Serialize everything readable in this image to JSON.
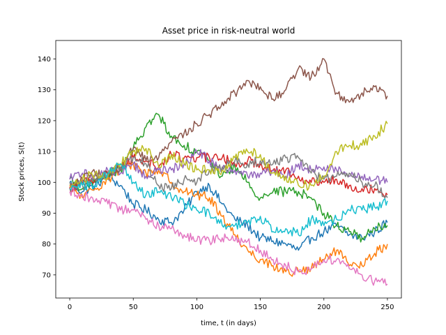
{
  "chart_data": {
    "type": "line",
    "title": "Asset price in risk-neutral world",
    "xlabel": "time, t (in days)",
    "ylabel": "Stock prices, S(t)",
    "xlim": [
      -11,
      261
    ],
    "ylim": [
      62.5,
      146
    ],
    "xticks": [
      0,
      50,
      100,
      150,
      200,
      250
    ],
    "yticks": [
      70,
      80,
      90,
      100,
      110,
      120,
      130,
      140
    ],
    "grid": false,
    "legend": "none",
    "x": [
      0,
      10,
      20,
      30,
      40,
      50,
      60,
      70,
      80,
      90,
      100,
      110,
      120,
      130,
      140,
      150,
      160,
      170,
      180,
      190,
      200,
      210,
      220,
      230,
      240,
      250
    ],
    "series": [
      {
        "color": "#1f77b4",
        "values": [
          100,
          97,
          99,
          102,
          99,
          93,
          91,
          88,
          87,
          91,
          97,
          99,
          93,
          88,
          86,
          82,
          81,
          80,
          78,
          82,
          84,
          86,
          83,
          82,
          84,
          87
        ]
      },
      {
        "color": "#ff7f0e",
        "values": [
          99,
          95,
          98,
          101,
          104,
          106,
          103,
          104,
          100,
          97,
          96,
          95,
          89,
          83,
          78,
          75,
          73,
          71,
          71,
          72,
          75,
          78,
          73,
          73,
          77,
          80
        ]
      },
      {
        "color": "#2ca02c",
        "values": [
          101,
          98,
          100,
          103,
          104,
          111,
          118,
          122,
          115,
          112,
          110,
          107,
          102,
          105,
          100,
          95,
          97,
          97,
          97,
          95,
          90,
          86,
          84,
          82,
          85,
          86
        ]
      },
      {
        "color": "#d62728",
        "values": [
          98,
          100,
          101,
          103,
          105,
          108,
          107,
          105,
          109,
          108,
          108,
          108,
          108,
          106,
          107,
          106,
          104,
          104,
          102,
          100,
          100,
          101,
          99,
          98,
          98,
          96
        ]
      },
      {
        "color": "#9467bd",
        "values": [
          101,
          103,
          102,
          104,
          103,
          106,
          102,
          104,
          104,
          106,
          110,
          107,
          104,
          104,
          102,
          103,
          104,
          102,
          106,
          104,
          105,
          104,
          102,
          102,
          101,
          100
        ]
      },
      {
        "color": "#8c564b",
        "values": [
          98,
          101,
          103,
          102,
          104,
          111,
          107,
          108,
          113,
          116,
          119,
          122,
          126,
          129,
          133,
          131,
          127,
          130,
          137,
          134,
          140,
          129,
          126,
          129,
          131,
          128
        ]
      },
      {
        "color": "#e377c2",
        "values": [
          97,
          96,
          94,
          93,
          91,
          91,
          88,
          86,
          85,
          83,
          81,
          81,
          82,
          81,
          81,
          78,
          75,
          73,
          71,
          72,
          75,
          75,
          72,
          70,
          68,
          67
        ]
      },
      {
        "color": "#7f7f7f",
        "values": [
          100,
          99,
          101,
          103,
          105,
          108,
          106,
          99,
          98,
          101,
          100,
          104,
          105,
          107,
          106,
          107,
          106,
          108,
          108,
          103,
          101,
          102,
          103,
          100,
          99,
          95
        ]
      },
      {
        "color": "#bcbd22",
        "values": [
          99,
          101,
          103,
          102,
          106,
          110,
          111,
          105,
          109,
          106,
          104,
          104,
          104,
          108,
          110,
          109,
          103,
          102,
          99,
          99,
          102,
          110,
          112,
          112,
          115,
          119
        ]
      },
      {
        "color": "#17becf",
        "values": [
          98,
          99,
          99,
          103,
          106,
          100,
          96,
          97,
          95,
          93,
          91,
          90,
          86,
          86,
          87,
          89,
          84,
          85,
          83,
          88,
          86,
          88,
          91,
          91,
          92,
          94
        ]
      }
    ]
  }
}
